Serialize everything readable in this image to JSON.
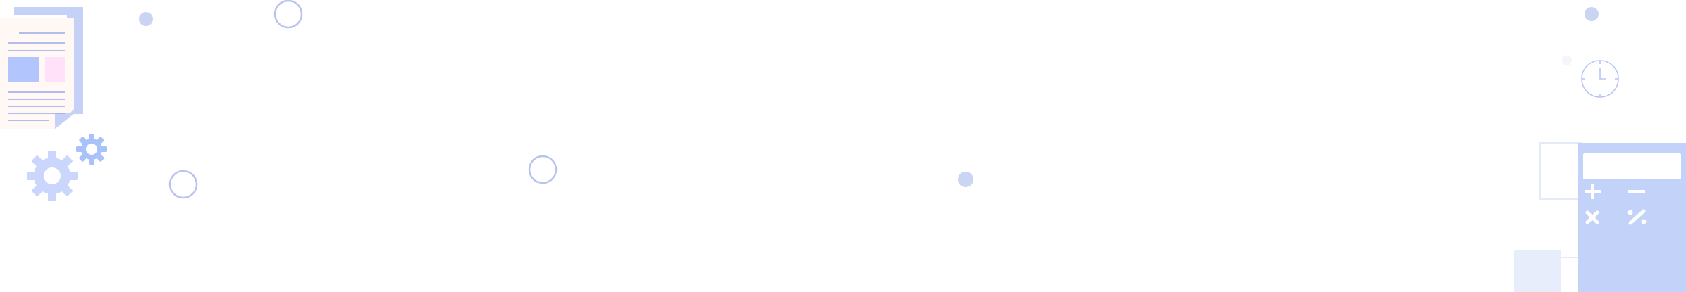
{
  "illustration": {
    "elements": [
      "document-stack",
      "gear-large",
      "gear-small",
      "clock-icon",
      "calculator-icon",
      "outline-rings",
      "filled-dots"
    ]
  },
  "colors": {
    "doc_back": "#c6d1f8",
    "doc_front": "#fff8f5",
    "doc_lines": "#9aa9ea",
    "block_blue": "#b2c5fc",
    "block_pink": "#ffe2fa",
    "gear": "#cbd6fd",
    "gear_small": "#a9c3fa",
    "ring_stroke": "#b8c4ee",
    "dot_fill": "#c9d5f3",
    "dot_pale": "#f4f6fc",
    "calc_fill": "#c2d2f8",
    "panel_pale": "#e8edfb",
    "outline_pale": "#e5eaf8"
  }
}
